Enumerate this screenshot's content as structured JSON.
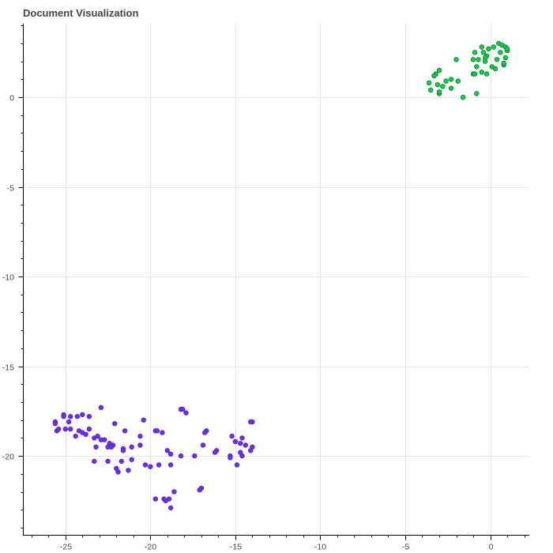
{
  "chart_data": {
    "type": "scatter",
    "title": "Document Visualization",
    "xlabel": "",
    "ylabel": "",
    "xlim": [
      -27.5,
      2.3
    ],
    "ylim": [
      -24.4,
      4.1
    ],
    "x_ticks": [
      -25,
      -20,
      -15,
      -10,
      -5,
      0
    ],
    "y_ticks": [
      0,
      -5,
      -10,
      -15,
      -20
    ],
    "x_minor_step": 1,
    "y_minor_step": 1,
    "grid": true,
    "legend": "none",
    "series": [
      {
        "color": "#00d648",
        "stroke": "#1e6e2e",
        "points": [
          [
            0.5,
            3.0
          ],
          [
            0.7,
            2.9
          ],
          [
            0.9,
            2.8
          ],
          [
            1.0,
            2.6
          ],
          [
            1.0,
            2.7
          ],
          [
            0.2,
            2.8
          ],
          [
            -0.5,
            2.8
          ],
          [
            -0.1,
            2.7
          ],
          [
            -0.4,
            2.5
          ],
          [
            -0.9,
            2.5
          ],
          [
            0.6,
            2.5
          ],
          [
            -0.2,
            2.3
          ],
          [
            -0.3,
            2.2
          ],
          [
            -0.3,
            2.0
          ],
          [
            0.9,
            2.2
          ],
          [
            0.4,
            2.1
          ],
          [
            -1.0,
            2.1
          ],
          [
            -2.0,
            2.1
          ],
          [
            -0.7,
            2.1
          ],
          [
            0.8,
            1.8
          ],
          [
            0.8,
            1.9
          ],
          [
            -0.8,
            1.7
          ],
          [
            0.1,
            1.7
          ],
          [
            0.3,
            1.6
          ],
          [
            -0.5,
            1.4
          ],
          [
            -0.2,
            1.3
          ],
          [
            -1.0,
            1.3
          ],
          [
            -0.9,
            1.3
          ],
          [
            -3.0,
            1.5
          ],
          [
            -3.2,
            1.3
          ],
          [
            -3.3,
            1.2
          ],
          [
            -2.3,
            1.0
          ],
          [
            -1.9,
            0.9
          ],
          [
            -2.6,
            0.9
          ],
          [
            -3.6,
            0.8
          ],
          [
            -3.1,
            0.7
          ],
          [
            -2.3,
            0.5
          ],
          [
            -2.8,
            0.6
          ],
          [
            -3.5,
            0.4
          ],
          [
            -3.0,
            0.2
          ],
          [
            -3.0,
            0.3
          ],
          [
            -0.8,
            0.2
          ],
          [
            -1.6,
            0.0
          ]
        ]
      },
      {
        "color": "#6a32e8",
        "stroke": "#5528c0",
        "points": [
          [
            -22.9,
            -17.3
          ],
          [
            -18.2,
            -17.4
          ],
          [
            -18.1,
            -17.4
          ],
          [
            -17.9,
            -17.6
          ],
          [
            -23.6,
            -17.8
          ],
          [
            -24.0,
            -17.7
          ],
          [
            -24.7,
            -17.8
          ],
          [
            -25.1,
            -17.7
          ],
          [
            -25.1,
            -17.8
          ],
          [
            -24.3,
            -17.8
          ],
          [
            -20.4,
            -18.0
          ],
          [
            -14.0,
            -18.1
          ],
          [
            -14.1,
            -18.1
          ],
          [
            -25.6,
            -18.1
          ],
          [
            -24.8,
            -18.1
          ],
          [
            -22.1,
            -18.2
          ],
          [
            -25.6,
            -18.2
          ],
          [
            -23.6,
            -18.5
          ],
          [
            -19.7,
            -18.6
          ],
          [
            -19.6,
            -18.6
          ],
          [
            -21.5,
            -18.6
          ],
          [
            -16.7,
            -18.6
          ],
          [
            -16.8,
            -18.7
          ],
          [
            -25.5,
            -18.6
          ],
          [
            -25.4,
            -18.5
          ],
          [
            -24.2,
            -18.6
          ],
          [
            -24.7,
            -18.5
          ],
          [
            -25.0,
            -18.5
          ],
          [
            -24.0,
            -18.7
          ],
          [
            -19.3,
            -18.7
          ],
          [
            -20.6,
            -18.9
          ],
          [
            -23.8,
            -18.8
          ],
          [
            -24.4,
            -18.9
          ],
          [
            -23.1,
            -18.9
          ],
          [
            -22.9,
            -19.1
          ],
          [
            -23.3,
            -19.0
          ],
          [
            -22.7,
            -19.1
          ],
          [
            -15.2,
            -18.9
          ],
          [
            -14.6,
            -19.0
          ],
          [
            -15.0,
            -19.2
          ],
          [
            -14.7,
            -19.3
          ],
          [
            -14.4,
            -19.4
          ],
          [
            -16.9,
            -19.4
          ],
          [
            -20.6,
            -19.4
          ],
          [
            -22.4,
            -19.3
          ],
          [
            -22.2,
            -19.4
          ],
          [
            -22.5,
            -19.5
          ],
          [
            -22.3,
            -19.5
          ],
          [
            -21.1,
            -19.5
          ],
          [
            -23.2,
            -19.5
          ],
          [
            -21.6,
            -19.6
          ],
          [
            -21.6,
            -19.7
          ],
          [
            -14.0,
            -19.5
          ],
          [
            -14.1,
            -19.7
          ],
          [
            -16.1,
            -19.7
          ],
          [
            -16.2,
            -19.8
          ],
          [
            -19.0,
            -19.7
          ],
          [
            -18.8,
            -19.9
          ],
          [
            -18.2,
            -20.0
          ],
          [
            -17.4,
            -20.0
          ],
          [
            -15.3,
            -20.0
          ],
          [
            -14.7,
            -19.8
          ],
          [
            -15.3,
            -20.1
          ],
          [
            -14.6,
            -20.0
          ],
          [
            -21.1,
            -20.2
          ],
          [
            -21.7,
            -20.3
          ],
          [
            -23.3,
            -20.3
          ],
          [
            -22.5,
            -20.3
          ],
          [
            -20.3,
            -20.5
          ],
          [
            -20.0,
            -20.6
          ],
          [
            -19.5,
            -20.5
          ],
          [
            -18.8,
            -20.5
          ],
          [
            -14.9,
            -20.5
          ],
          [
            -22.0,
            -20.7
          ],
          [
            -21.3,
            -20.8
          ],
          [
            -21.9,
            -20.9
          ],
          [
            -17.0,
            -21.8
          ],
          [
            -17.1,
            -21.9
          ],
          [
            -18.6,
            -22.0
          ],
          [
            -19.2,
            -22.4
          ],
          [
            -19.1,
            -22.5
          ],
          [
            -18.9,
            -22.4
          ],
          [
            -19.7,
            -22.4
          ],
          [
            -18.8,
            -22.9
          ]
        ]
      }
    ]
  }
}
